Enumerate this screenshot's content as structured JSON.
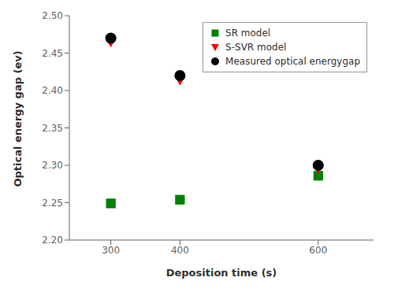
{
  "chart_data": {
    "type": "scatter",
    "x": [
      300,
      400,
      600
    ],
    "series": [
      {
        "name": "SR model",
        "color": "green",
        "marker": "square",
        "values": [
          2.249,
          2.254,
          2.286
        ]
      },
      {
        "name": "S-SVR model",
        "color": "red",
        "marker": "triangle_down",
        "values": [
          2.465,
          2.414,
          2.296
        ]
      },
      {
        "name": "Measured optical energygap",
        "color": "black",
        "marker": "circle",
        "values": [
          2.47,
          2.42,
          2.3
        ]
      }
    ],
    "xlabel": "Deposition time (s)",
    "ylabel": "Optical energy gap (ev)",
    "xlim": [
      240,
      680
    ],
    "xticks": [
      300,
      400,
      600
    ],
    "ylim": [
      2.2,
      2.5
    ],
    "yticks": [
      {
        "value": 2.2,
        "label": "2.20"
      },
      2.25,
      {
        "value": 2.3,
        "label": "2.30"
      },
      2.35,
      {
        "value": 2.4,
        "label": "2.40"
      },
      2.45,
      {
        "value": 2.5,
        "label": "2.50"
      }
    ],
    "grid": false,
    "legend": "upper right"
  }
}
